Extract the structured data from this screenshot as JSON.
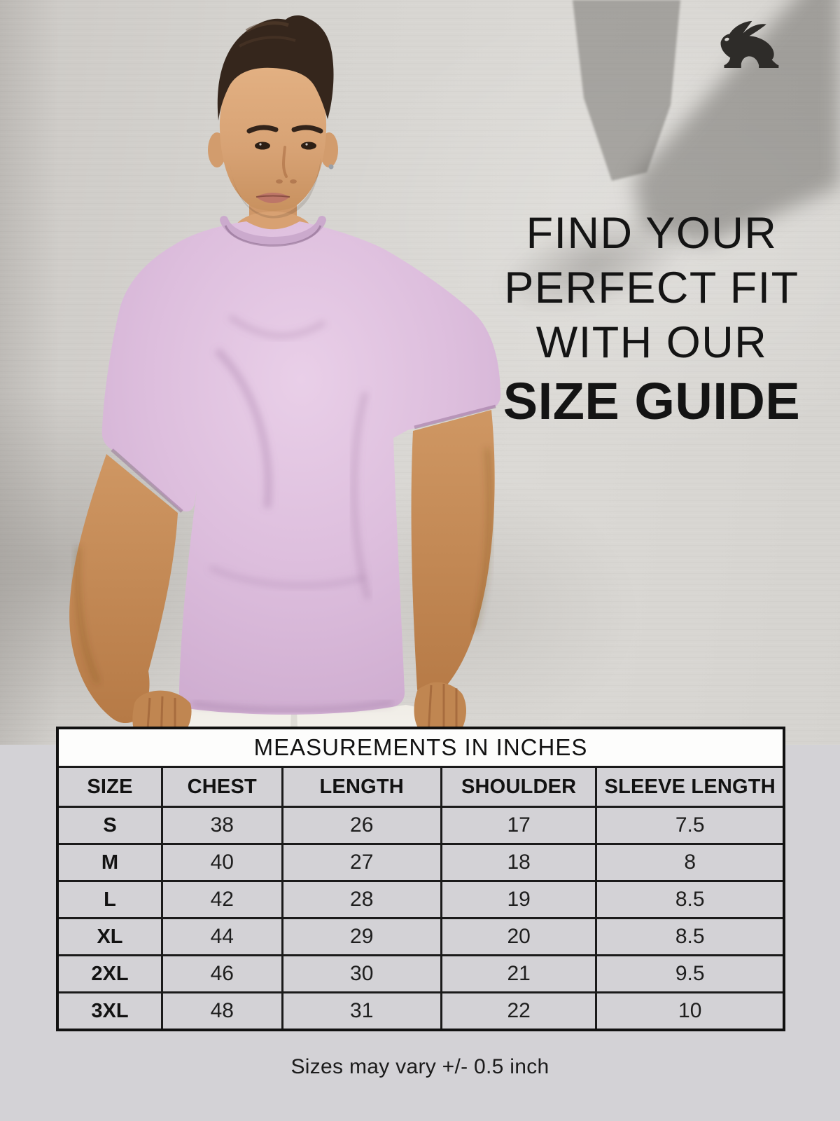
{
  "poster": {
    "logo": {
      "icon": "rabbit-icon",
      "color": "#2e2c29"
    },
    "headline": {
      "lines": [
        "FIND YOUR",
        "PERFECT FIT",
        "WITH OUR"
      ],
      "emphasis": "SIZE GUIDE"
    },
    "size_table": {
      "title": "MEASUREMENTS IN INCHES",
      "columns": [
        "SIZE",
        "CHEST",
        "LENGTH",
        "SHOULDER",
        "SLEEVE LENGTH"
      ],
      "rows": [
        [
          "S",
          "38",
          "26",
          "17",
          "7.5"
        ],
        [
          "M",
          "40",
          "27",
          "18",
          "8"
        ],
        [
          "L",
          "42",
          "28",
          "19",
          "8.5"
        ],
        [
          "XL",
          "44",
          "29",
          "20",
          "8.5"
        ],
        [
          "2XL",
          "46",
          "30",
          "21",
          "9.5"
        ],
        [
          "3XL",
          "48",
          "31",
          "22",
          "10"
        ]
      ]
    },
    "footnote": "Sizes may vary +/- 0.5 inch",
    "colors": {
      "headline_text": "#141414",
      "wall": "#d5d3cf",
      "backdrop_shadow": "#9a9896",
      "panel_bg": "#d3d2d6",
      "table_border": "#111111",
      "table_title_bg": "#fdfdfc",
      "table_cell_bg": "#d3d2d6",
      "tshirt": "#e0c2df",
      "pants": "#f2efe9"
    }
  }
}
